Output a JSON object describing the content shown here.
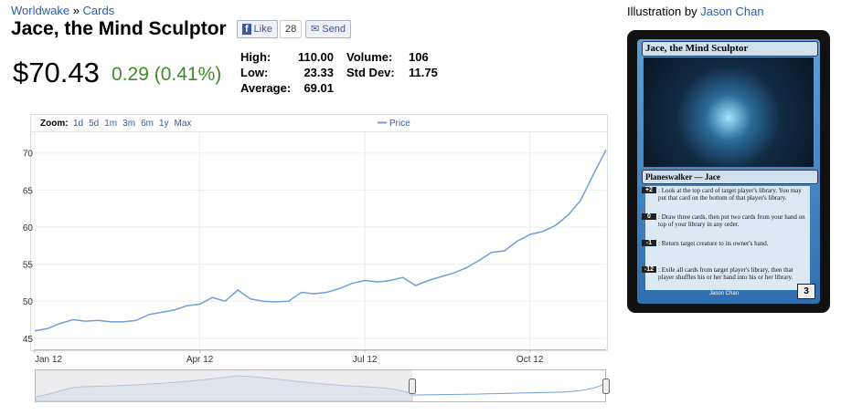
{
  "breadcrumb": {
    "set": "Worldwake",
    "separator": "»",
    "section": "Cards"
  },
  "title": "Jace, the Mind Sculptor",
  "social": {
    "like": "Like",
    "like_count": "28",
    "send": "Send"
  },
  "price": {
    "current": "$70.43",
    "change": "0.29 (0.41%)"
  },
  "stats": {
    "rows": [
      [
        "High:",
        "110.00",
        "Volume:",
        "106"
      ],
      [
        "Low:",
        "23.33",
        "Std Dev:",
        "11.75"
      ],
      [
        "Average:",
        "69.01"
      ]
    ]
  },
  "illustration": {
    "label": "Illustration by",
    "artist": "Jason Chan"
  },
  "card": {
    "name": "Jace, the Mind Sculptor",
    "type_line": "Planeswalker — Jace",
    "abilities": [
      {
        "cost": "+2",
        "text": ": Look at the top card of target player's library. You may put that card on the bottom of that player's library."
      },
      {
        "cost": "0",
        "text": ": Draw three cards, then put two cards from your hand on top of your library in any order."
      },
      {
        "cost": "-1",
        "text": ": Return target creature to its owner's hand."
      },
      {
        "cost": "-12",
        "text": ": Exile all cards from target player's library, then that player shuffles his or her hand into his or her library."
      }
    ],
    "loyalty": "3",
    "artist": "Jason Chan"
  },
  "chart_data": {
    "type": "line",
    "zoom_label": "Zoom:",
    "zoom_options": [
      "1d",
      "5d",
      "1m",
      "3m",
      "6m",
      "1y",
      "Max"
    ],
    "categories": [
      "Jan 12",
      null,
      null,
      null,
      null,
      null,
      null,
      null,
      null,
      null,
      null,
      null,
      null,
      "Apr 12",
      null,
      null,
      null,
      null,
      null,
      null,
      null,
      null,
      null,
      null,
      null,
      null,
      "Jul 12",
      null,
      null,
      null,
      null,
      null,
      null,
      null,
      null,
      null,
      null,
      null,
      null,
      "Oct 12",
      null,
      null,
      null,
      null,
      null,
      null
    ],
    "series": [
      {
        "name": "Price",
        "color": "#6f9fd8",
        "values": [
          46,
          46.3,
          47,
          47.5,
          47.3,
          47.4,
          47.2,
          47.2,
          47.4,
          48.2,
          48.5,
          48.8,
          49.4,
          49.6,
          50.5,
          50,
          51.5,
          50.3,
          50,
          49.9,
          50,
          51.2,
          51,
          51.2,
          51.7,
          52.4,
          52.8,
          52.6,
          52.8,
          53.2,
          52.1,
          52.8,
          53.3,
          53.8,
          54.5,
          55.5,
          56.6,
          56.8,
          58.1,
          59,
          59.4,
          60.2,
          61.6,
          63.6,
          67.1,
          70.43
        ]
      }
    ],
    "ylim": [
      43.5,
      72.8
    ],
    "yticks": [
      45,
      50,
      55,
      60,
      65,
      70
    ],
    "grid": true
  }
}
